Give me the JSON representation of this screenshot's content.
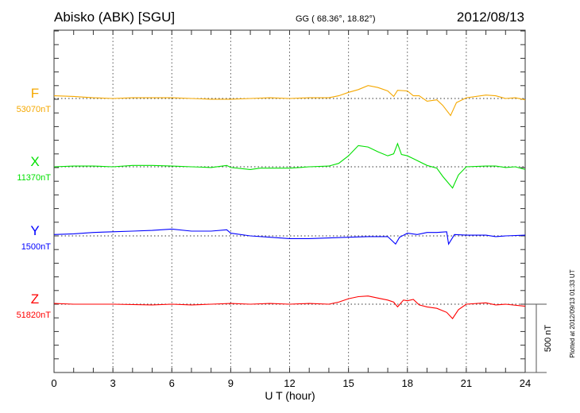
{
  "header": {
    "station": "Abisko (ABK)  [SGU]",
    "coords": "GG ( 68.36°,  18.82°)",
    "date": "2012/08/13"
  },
  "footer": {
    "plotted": "Plotted at 2012/09/13 01:33 UT",
    "scale_label": "500 nT"
  },
  "chart_data": {
    "type": "line",
    "title": "Abisko (ABK)  [SGU]",
    "xlabel": "U T (hour)",
    "ylabel": "",
    "xlim": [
      0,
      24
    ],
    "xticks": [
      "0",
      "3",
      "6",
      "9",
      "12",
      "15",
      "18",
      "21",
      "24"
    ],
    "scale_bar_nT": 500,
    "y_unit": "nT deviation from baseline",
    "grid": "dotted at every 3 hours and at each series baseline",
    "series": [
      {
        "name": "F",
        "baseline_label": "53070nT",
        "color": "#f5a800",
        "x": [
          0,
          1,
          2,
          3,
          4,
          5,
          6,
          7,
          8,
          9,
          10,
          11,
          12,
          13,
          14,
          14.5,
          15,
          15.5,
          16,
          16.5,
          17,
          17.3,
          17.5,
          18,
          18.3,
          18.6,
          19,
          19.5,
          19.8,
          20.2,
          20.5,
          21,
          22,
          22.5,
          23,
          23.5,
          24
        ],
        "y": [
          20,
          15,
          5,
          0,
          5,
          5,
          5,
          0,
          -5,
          -5,
          0,
          5,
          0,
          5,
          5,
          20,
          45,
          65,
          95,
          80,
          55,
          15,
          60,
          55,
          20,
          20,
          -20,
          -10,
          -50,
          -125,
          -30,
          5,
          25,
          20,
          0,
          5,
          -10
        ]
      },
      {
        "name": "X",
        "baseline_label": "11370nT",
        "color": "#00e000",
        "x": [
          0,
          1,
          2,
          3,
          4,
          5,
          6,
          7,
          8,
          8.8,
          9,
          10,
          10.5,
          11,
          12,
          12.5,
          13,
          14,
          14.5,
          15,
          15.5,
          16,
          16.5,
          17,
          17.3,
          17.5,
          17.7,
          18,
          18.3,
          19,
          19.5,
          19.8,
          20.3,
          20.6,
          21,
          22,
          22.5,
          23,
          23.5,
          24
        ],
        "y": [
          0,
          5,
          5,
          0,
          10,
          10,
          5,
          0,
          -5,
          10,
          -5,
          -20,
          -10,
          -10,
          -10,
          -5,
          0,
          5,
          25,
          80,
          155,
          145,
          110,
          80,
          95,
          170,
          90,
          80,
          60,
          10,
          -10,
          -70,
          -155,
          -60,
          0,
          5,
          5,
          -5,
          0,
          -20
        ]
      },
      {
        "name": "Y",
        "baseline_label": "1500nT",
        "color": "#0000ff",
        "x": [
          0,
          1,
          2,
          3,
          4,
          5,
          6,
          7,
          8,
          8.8,
          9,
          10,
          11,
          12,
          13,
          14,
          15,
          16,
          17,
          17.4,
          17.6,
          18,
          18.5,
          19,
          19.5,
          20,
          20.1,
          20.4,
          21,
          22,
          22.5,
          23,
          24
        ],
        "y": [
          10,
          15,
          25,
          30,
          35,
          40,
          50,
          35,
          35,
          45,
          20,
          0,
          -10,
          -20,
          -20,
          -15,
          -10,
          -5,
          -5,
          -60,
          -10,
          20,
          10,
          25,
          25,
          30,
          -60,
          10,
          5,
          5,
          -5,
          0,
          5
        ]
      },
      {
        "name": "Z",
        "baseline_label": "51820nT",
        "color": "#ff0000",
        "x": [
          0,
          1,
          2,
          3,
          5,
          6,
          7,
          8,
          9,
          10,
          11,
          12,
          13,
          14,
          14.5,
          15,
          15.5,
          16,
          16.5,
          17,
          17.3,
          17.5,
          17.8,
          18,
          18.3,
          18.6,
          19,
          19.5,
          20,
          20.3,
          20.6,
          21,
          22,
          22.5,
          23,
          24
        ],
        "y": [
          5,
          0,
          0,
          0,
          -5,
          0,
          -5,
          0,
          5,
          0,
          5,
          0,
          5,
          0,
          15,
          40,
          55,
          60,
          45,
          30,
          15,
          -20,
          30,
          25,
          35,
          -5,
          -20,
          -30,
          -60,
          -105,
          -40,
          0,
          10,
          -5,
          0,
          -15
        ]
      }
    ]
  }
}
